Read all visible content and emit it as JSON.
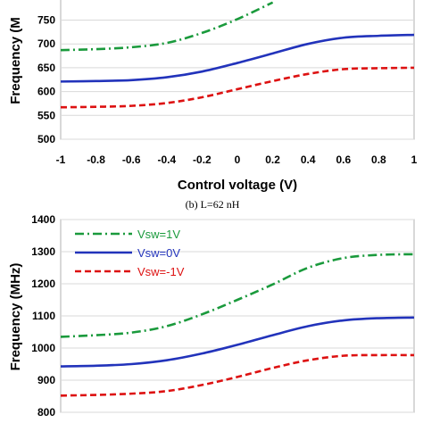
{
  "chart_data": [
    {
      "type": "line",
      "xlabel": "Control voltage (V)",
      "ylabel": "Frequency (M",
      "xlim": [
        -1,
        1
      ],
      "ylim": [
        500,
        750
      ],
      "x_ticks": [
        "-1",
        "-0.8",
        "-0.6",
        "-0.4",
        "-0.2",
        "0",
        "0.2",
        "0.4",
        "0.6",
        "0.8",
        "1"
      ],
      "y_ticks": [
        "500",
        "550",
        "600",
        "650",
        "700",
        "750"
      ],
      "caption": "(b) L=62 nH",
      "legend": "none",
      "series": [
        {
          "color": "#1a9a3c",
          "style": "dashdot",
          "x": [
            -1,
            -0.8,
            -0.6,
            -0.4,
            -0.2,
            0,
            0.2
          ],
          "y": [
            687,
            689,
            693,
            702,
            723,
            752,
            787
          ]
        },
        {
          "color": "#2233bb",
          "style": "solid",
          "x": [
            -1,
            -0.8,
            -0.6,
            -0.4,
            -0.2,
            0,
            0.2,
            0.4,
            0.6,
            0.8,
            1
          ],
          "y": [
            621,
            622,
            624,
            630,
            642,
            660,
            680,
            700,
            713,
            717,
            719
          ]
        },
        {
          "color": "#dd1111",
          "style": "dashed",
          "x": [
            -1,
            -0.8,
            -0.6,
            -0.4,
            -0.2,
            0,
            0.2,
            0.4,
            0.6,
            0.8,
            1
          ],
          "y": [
            567,
            568,
            570,
            576,
            588,
            605,
            622,
            637,
            647,
            649,
            650
          ]
        }
      ]
    },
    {
      "type": "line",
      "ylabel": "Frequency (MHz)",
      "ylim": [
        800,
        1400
      ],
      "y_ticks": [
        "800",
        "900",
        "1000",
        "1100",
        "1200",
        "1300",
        "1400"
      ],
      "xlim": [
        -1,
        1
      ],
      "legend": "top-left",
      "series": [
        {
          "name": "Vsw=1V",
          "color": "#1a9a3c",
          "style": "dashdot",
          "x": [
            -1,
            -0.8,
            -0.6,
            -0.4,
            -0.2,
            0,
            0.2,
            0.4,
            0.6,
            0.8,
            1
          ],
          "y": [
            1035,
            1040,
            1048,
            1068,
            1105,
            1150,
            1198,
            1250,
            1280,
            1290,
            1292
          ]
        },
        {
          "name": "Vsw=0V",
          "color": "#2233bb",
          "style": "solid",
          "x": [
            -1,
            -0.8,
            -0.6,
            -0.4,
            -0.2,
            0,
            0.2,
            0.4,
            0.6,
            0.8,
            1
          ],
          "y": [
            943,
            945,
            950,
            962,
            983,
            1010,
            1040,
            1068,
            1086,
            1093,
            1095
          ]
        },
        {
          "name": "Vsw=-1V",
          "color": "#dd1111",
          "style": "dashed",
          "x": [
            -1,
            -0.8,
            -0.6,
            -0.4,
            -0.2,
            0,
            0.2,
            0.4,
            0.6,
            0.8,
            1
          ],
          "y": [
            852,
            854,
            858,
            866,
            885,
            910,
            938,
            962,
            976,
            978,
            978
          ]
        }
      ]
    }
  ]
}
